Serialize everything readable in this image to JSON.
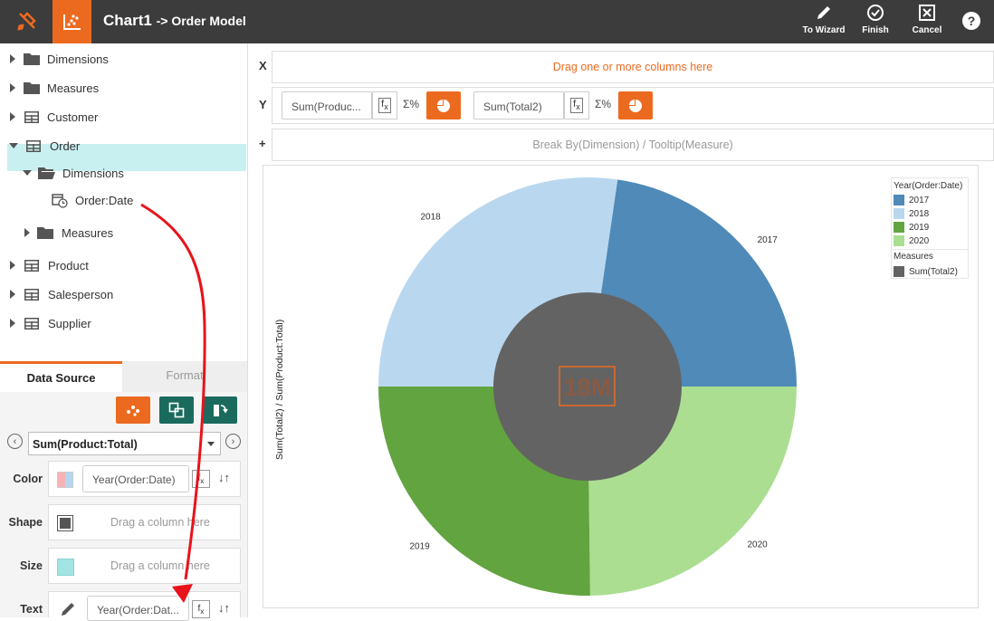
{
  "header": {
    "title": "Chart1",
    "subtitle": "-> Order Model",
    "buttons": {
      "wizard": "To Wizard",
      "finish": "Finish",
      "cancel": "Cancel"
    }
  },
  "tree": {
    "items": [
      {
        "label": "Dimensions"
      },
      {
        "label": "Measures"
      },
      {
        "label": "Customer"
      },
      {
        "label": "Order"
      },
      {
        "label": "Dimensions"
      },
      {
        "label": "Order:Date"
      },
      {
        "label": "Measures"
      },
      {
        "label": "Product"
      },
      {
        "label": "Salesperson"
      },
      {
        "label": "Supplier"
      }
    ]
  },
  "panel": {
    "tabs": {
      "data_source": "Data Source",
      "format": "Format"
    },
    "measure": "Sum(Product:Total)",
    "color": {
      "label": "Color",
      "value": "Year(Order:Date)"
    },
    "shape": {
      "label": "Shape",
      "placeholder": "Drag a column here"
    },
    "size": {
      "label": "Size",
      "placeholder": "Drag a column here"
    },
    "text": {
      "label": "Text",
      "value": "Year(Order:Dat..."
    }
  },
  "zones": {
    "x": {
      "label": "X",
      "placeholder": "Drag one or more columns here"
    },
    "y": {
      "label": "Y",
      "fields": [
        "Sum(Produc...",
        "Sum(Total2)"
      ],
      "sigma": "Σ%"
    },
    "plus": {
      "label": "+",
      "placeholder": "Break By(Dimension) / Tooltip(Measure)"
    }
  },
  "chart": {
    "ylabel": "Sum(Total2) / Sum(Product:Total)",
    "center_label": "18M"
  },
  "chart_data": {
    "type": "pie",
    "series": [
      {
        "name": "Sum(Product:Total)",
        "categories": [
          "2017",
          "2018",
          "2019",
          "2020"
        ],
        "values": [
          22.7,
          27.3,
          25.2,
          24.8
        ]
      },
      {
        "name": "Sum(Total2)",
        "values": [
          18
        ]
      }
    ],
    "legend": {
      "title": "Year(Order:Date)",
      "items": [
        {
          "label": "2017",
          "color": "#4f8ab8"
        },
        {
          "label": "2018",
          "color": "#b9d8f0"
        },
        {
          "label": "2019",
          "color": "#62a43f"
        },
        {
          "label": "2020",
          "color": "#abde91"
        }
      ],
      "measures_title": "Measures",
      "measure_items": [
        {
          "label": "Sum(Total2)",
          "color": "#636363"
        }
      ],
      "placement": "top-right"
    }
  },
  "colors": {
    "accent": "#ec6a1f",
    "teal": "#1a6b5e",
    "selection": "#c9f0f0",
    "arrow": "#e8131b"
  }
}
